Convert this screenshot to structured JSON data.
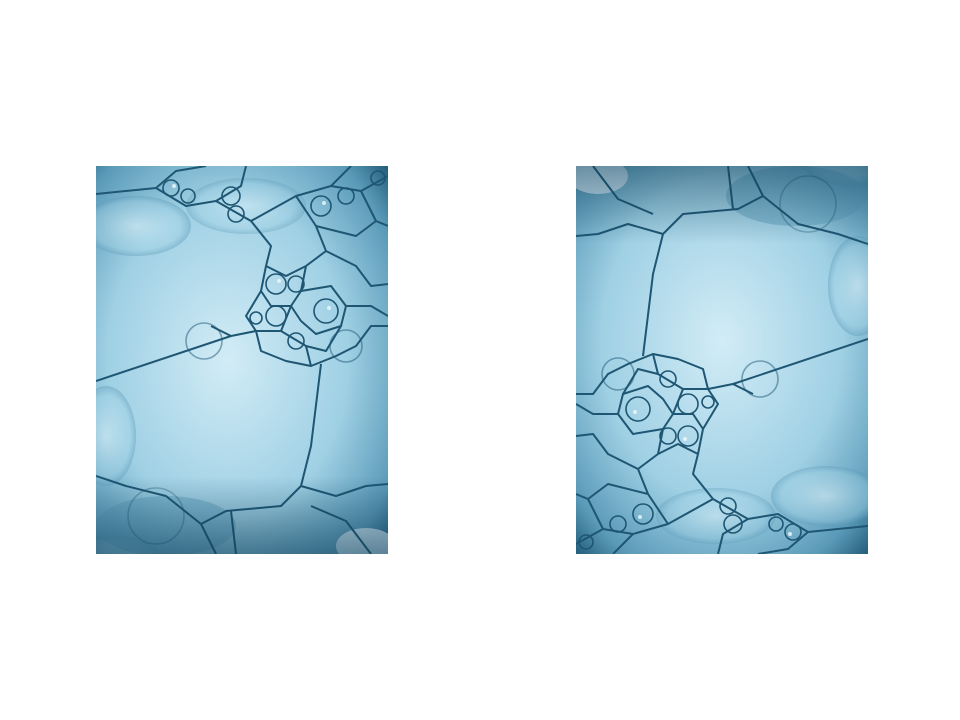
{
  "images": [
    {
      "name": "bubble-foam-photo-left",
      "palette": {
        "light": "#cfeaf5",
        "mid": "#8cc6de",
        "deep": "#3f7fa0",
        "dark": "#0f3f5a",
        "edge": "#1b4f6a"
      }
    },
    {
      "name": "bubble-foam-photo-right",
      "palette": {
        "light": "#cfeaf5",
        "mid": "#8cc6de",
        "deep": "#3f7fa0",
        "dark": "#0f3f5a",
        "edge": "#1b4f6a"
      }
    }
  ]
}
